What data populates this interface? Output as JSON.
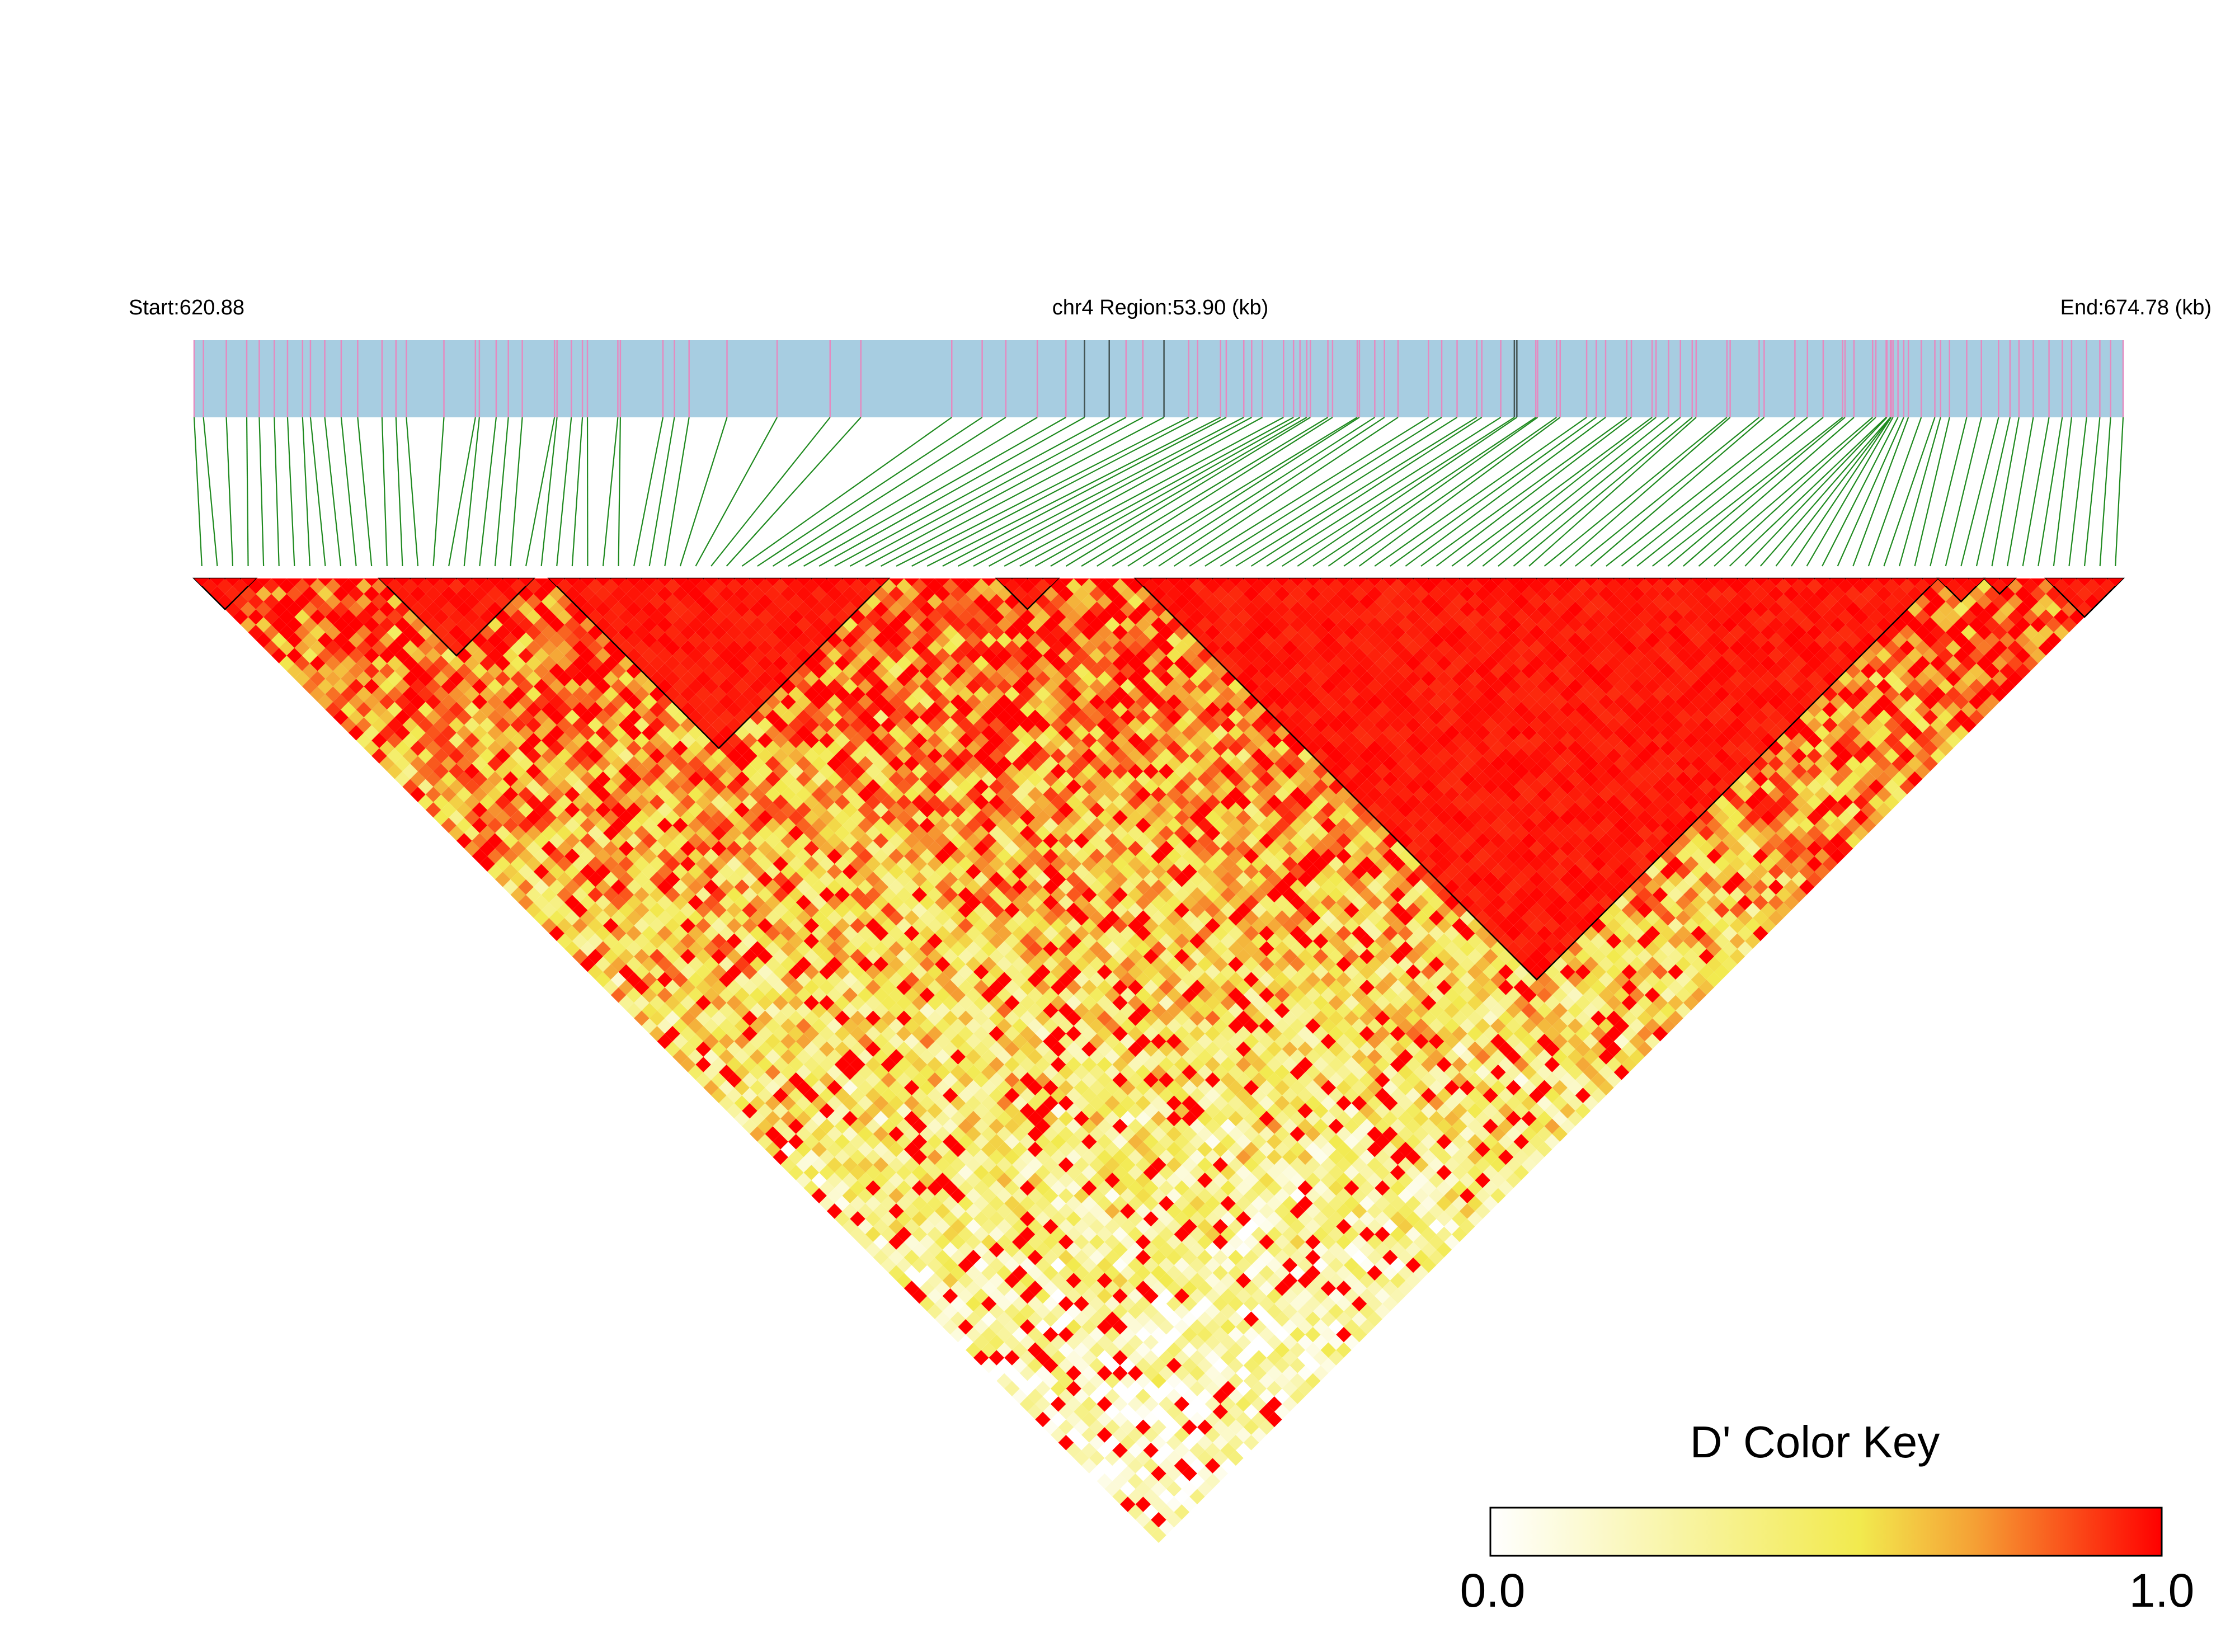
{
  "chart_data": {
    "type": "heatmap",
    "subtype": "linkage-disequilibrium-triangle",
    "chromosome": "chr4",
    "header": {
      "start_label": "Start:620.88",
      "region_label": "chr4 Region:53.90 (kb)",
      "end_label": "End:674.78 (kb)"
    },
    "region": {
      "start_kb": 620.88,
      "end_kb": 674.78,
      "length_kb": 53.9
    },
    "snp_count": 125,
    "snp_positions_kb": [
      620.88,
      621.14,
      621.78,
      622.35,
      622.7,
      623.12,
      623.49,
      623.91,
      624.13,
      624.53,
      624.99,
      625.45,
      626.13,
      626.52,
      626.81,
      627.86,
      628.74,
      628.85,
      629.32,
      629.66,
      630.05,
      630.95,
      631.02,
      631.42,
      631.73,
      631.87,
      632.72,
      632.79,
      633.98,
      634.3,
      634.71,
      635.77,
      637.17,
      638.65,
      639.51,
      642.05,
      642.9,
      643.56,
      644.44,
      645.24,
      645.76,
      646.45,
      646.92,
      647.39,
      647.98,
      648.67,
      648.92,
      649.56,
      649.72,
      650.21,
      650.43,
      650.73,
      651.32,
      651.6,
      651.78,
      651.97,
      652.07,
      652.56,
      652.69,
      653.38,
      653.44,
      653.87,
      654.14,
      654.52,
      655.37,
      655.74,
      656.17,
      656.72,
      656.86,
      657.39,
      657.77,
      657.84,
      658.37,
      658.42,
      658.95,
      659.05,
      659.79,
      660.06,
      660.32,
      660.91,
      661.04,
      661.62,
      661.73,
      662.08,
      662.41,
      662.74,
      662.85,
      663.71,
      663.8,
      664.61,
      664.75,
      665.61,
      665.96,
      666.4,
      666.94,
      667.01,
      667.26,
      667.78,
      667.87,
      668.16,
      668.18,
      668.28,
      668.29,
      668.3,
      668.35,
      668.49,
      668.65,
      668.78,
      669.14,
      669.52,
      669.68,
      669.93,
      670.41,
      670.82,
      671.3,
      671.62,
      671.87,
      672.27,
      672.71,
      673.08,
      673.34,
      673.76,
      674.13,
      674.43,
      674.78
    ],
    "ld_blocks_snp_index_ranges": [
      [
        0,
        3
      ],
      [
        12,
        21
      ],
      [
        23,
        44
      ],
      [
        52,
        55
      ],
      [
        61,
        112
      ],
      [
        113,
        115
      ],
      [
        116,
        117
      ],
      [
        120,
        124
      ]
    ],
    "ld_matrix_note": "pairwise D' values between all SNP pairs, shown as the triangle cells",
    "color_key": {
      "title": "D' Color Key",
      "min_label": "0.0",
      "max_label": "1.0",
      "range": [
        0.0,
        1.0
      ],
      "stops": [
        "#ffffff",
        "#f2ea4e",
        "#f5a135",
        "#ff0000"
      ]
    },
    "colors": {
      "region_bar": "#a7cde1",
      "snp_tick": "#e58ac0",
      "snp_tick_alt": "#445555",
      "connector_line": "#1f8a1f",
      "block_outline": "#000000"
    }
  }
}
